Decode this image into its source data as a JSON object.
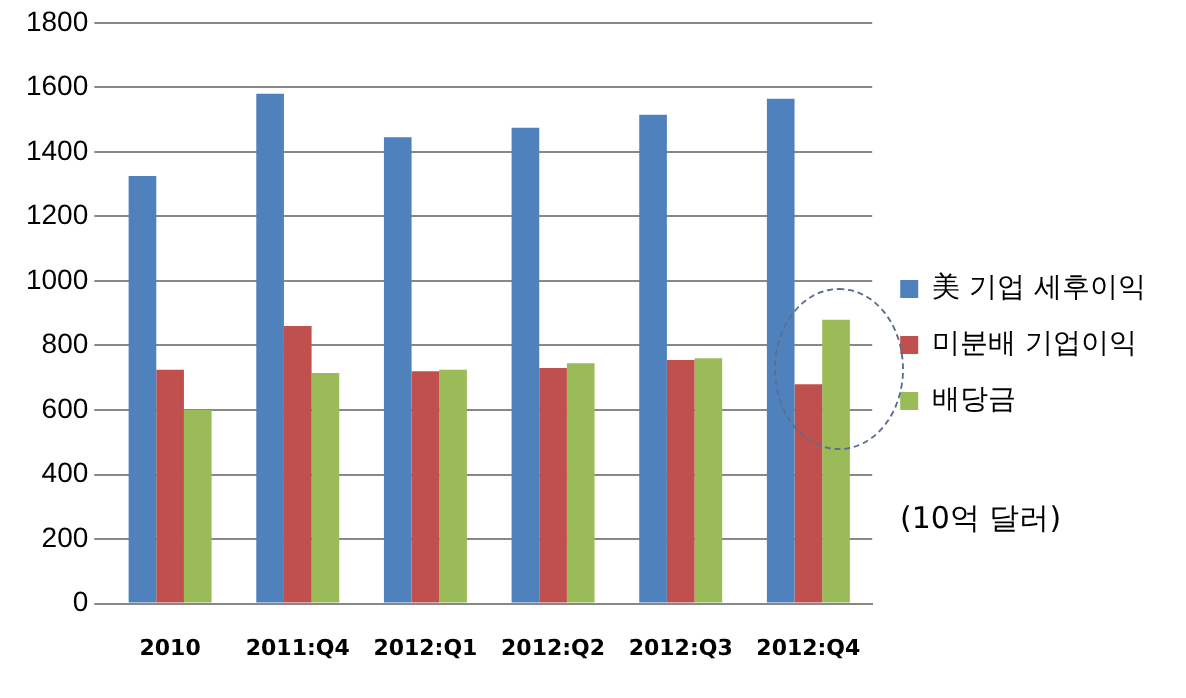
{
  "chart_data": {
    "type": "bar",
    "categories": [
      "2010",
      "2011:Q4",
      "2012:Q1",
      "2012:Q2",
      "2012:Q3",
      "2012:Q4"
    ],
    "series": [
      {
        "name": "美 기업 세후이익",
        "color": "#4f81bd",
        "values": [
          1325,
          1580,
          1445,
          1475,
          1515,
          1565
        ]
      },
      {
        "name": "미분배 기업이익",
        "color": "#c0504d",
        "values": [
          725,
          860,
          720,
          730,
          755,
          680
        ]
      },
      {
        "name": "배당금",
        "color": "#9bbb59",
        "values": [
          600,
          715,
          725,
          745,
          760,
          880
        ]
      }
    ],
    "ylim": [
      0,
      1800
    ],
    "yticks": [
      0,
      200,
      400,
      600,
      800,
      1000,
      1200,
      1400,
      1600,
      1800
    ],
    "grid": "y",
    "legend": "right",
    "annotations": [
      "(10억 달러)"
    ]
  }
}
